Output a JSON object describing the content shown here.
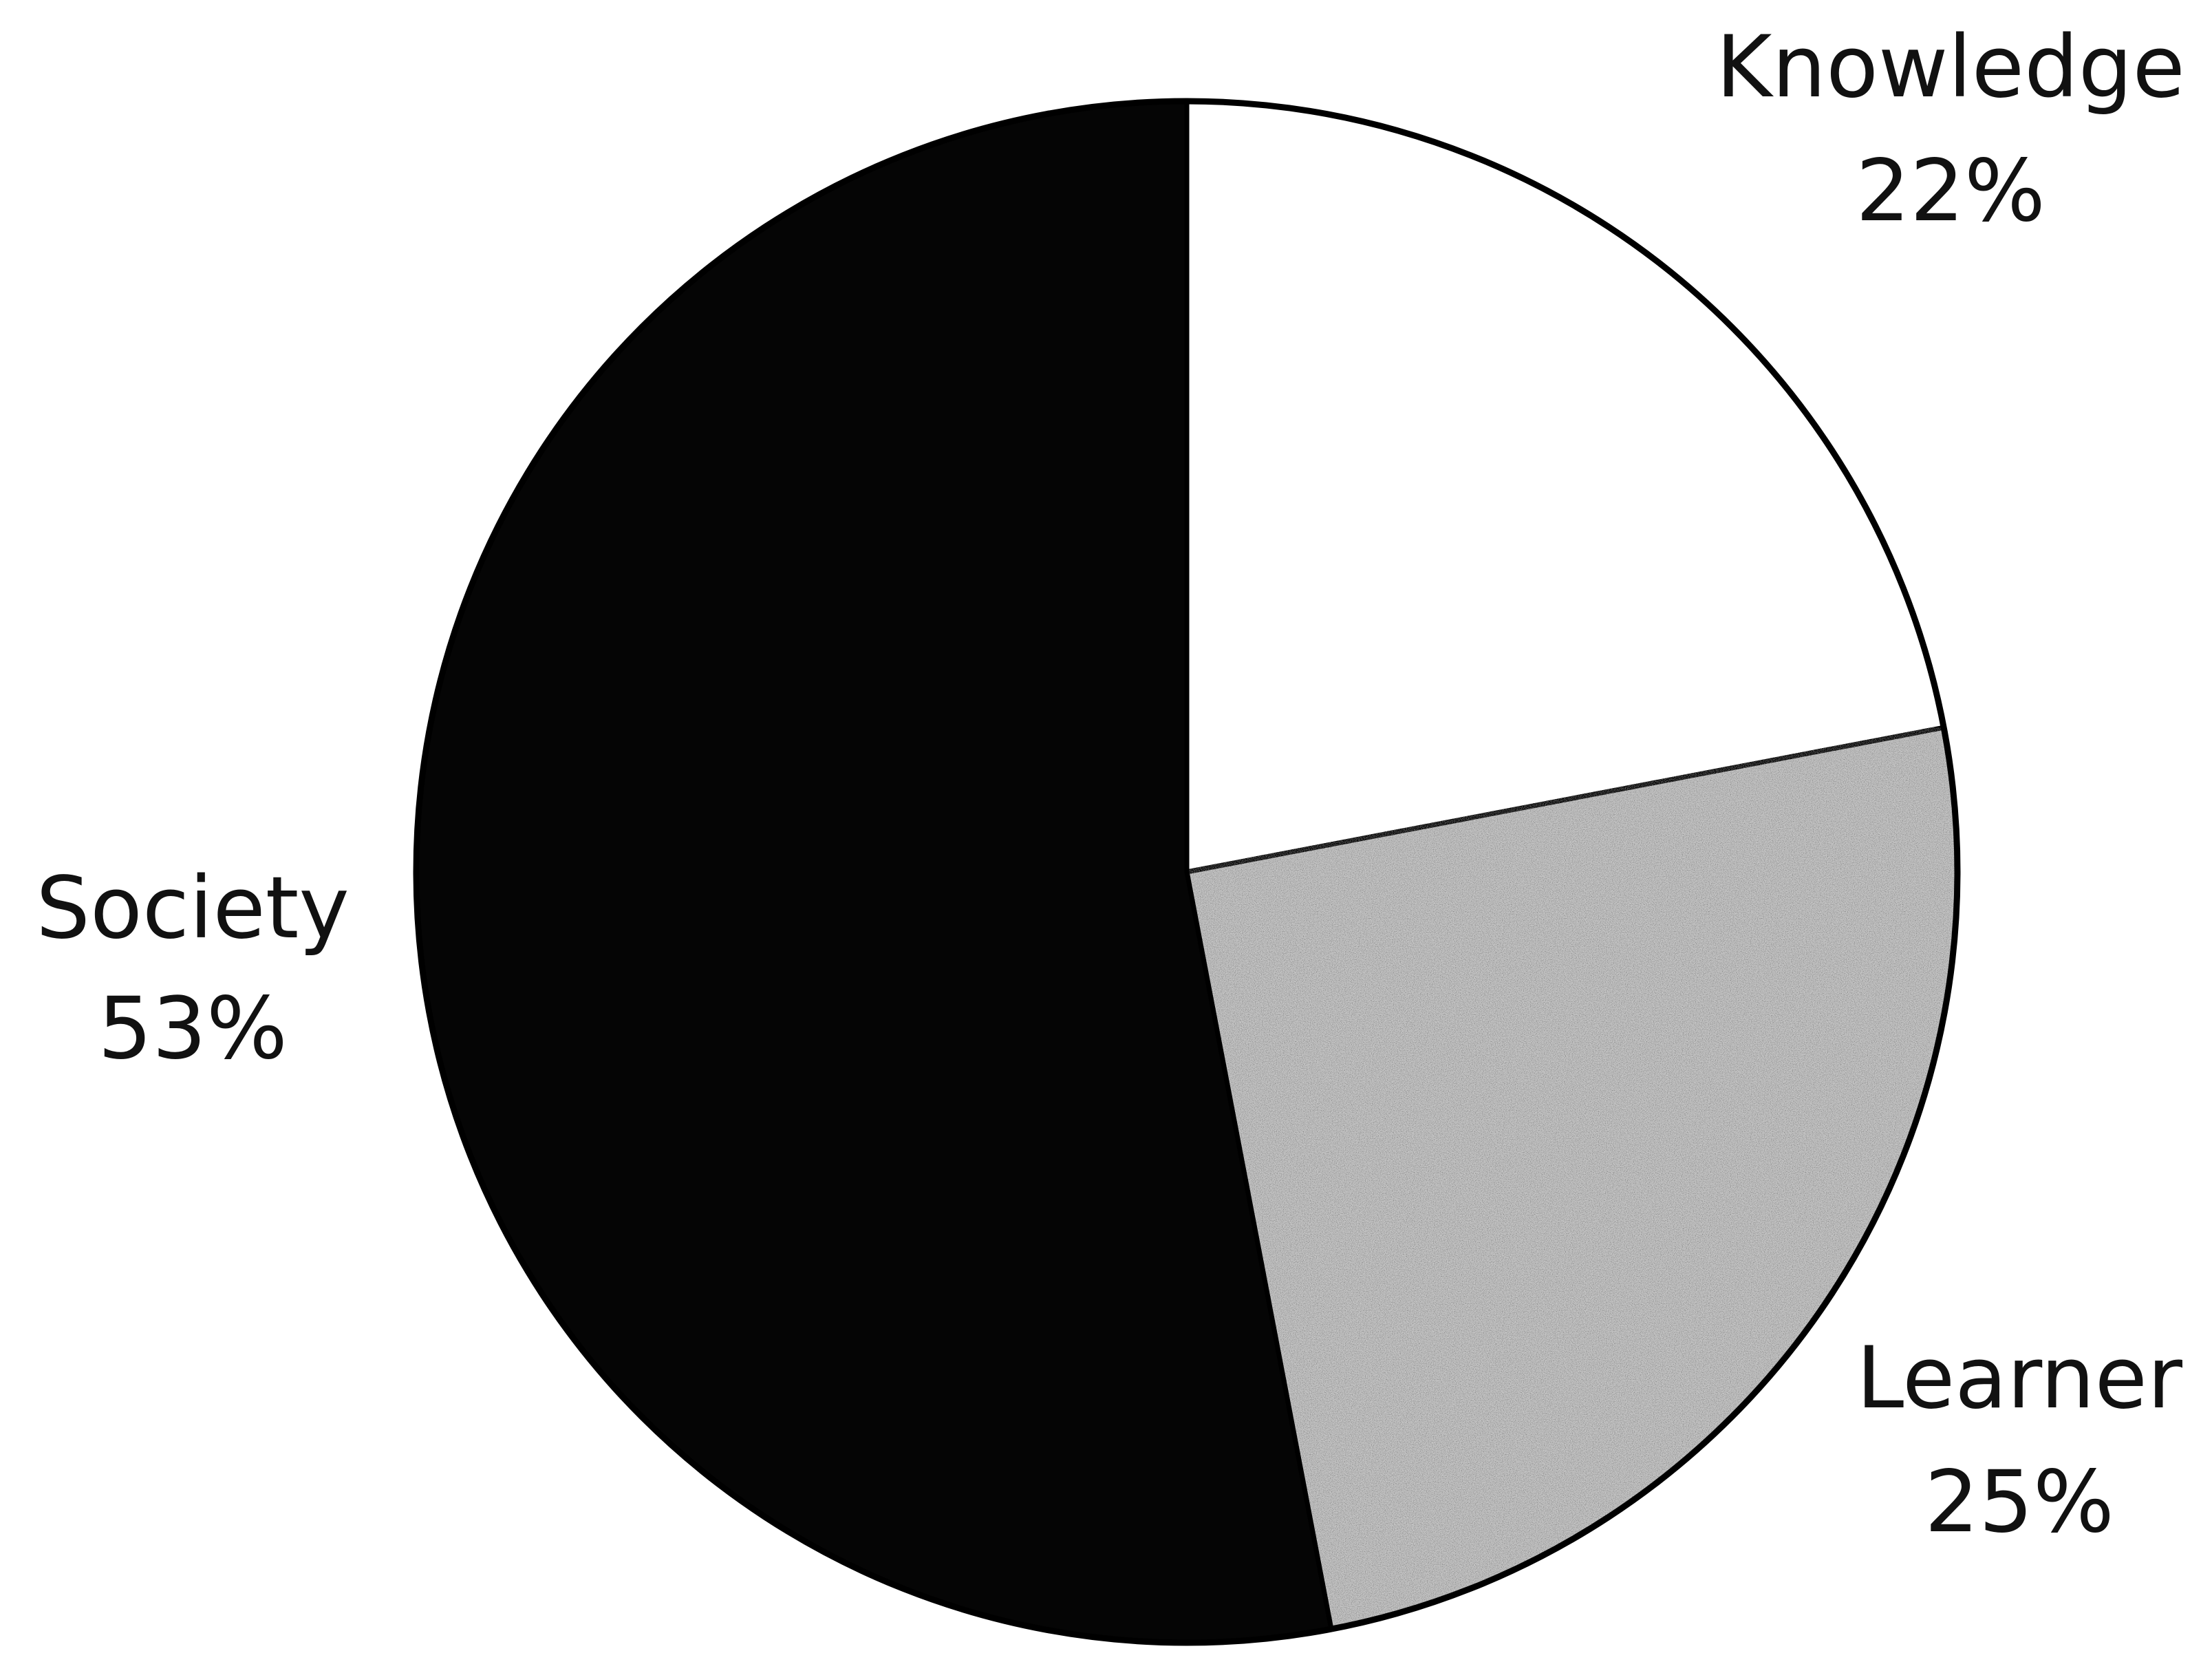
{
  "chart_data": {
    "type": "pie",
    "title": "",
    "start_angle_deg": 0,
    "direction": "clockwise",
    "slices": [
      {
        "label": "Knowledge",
        "value": 22,
        "value_label": "22%",
        "color": "#ffffff",
        "fill": "solid"
      },
      {
        "label": "Learner",
        "value": 25,
        "value_label": "25%",
        "color": "#c4c4c4",
        "fill": "speckled"
      },
      {
        "label": "Society",
        "value": 53,
        "value_label": "53%",
        "color": "#050505",
        "fill": "solid"
      }
    ],
    "legend": "none",
    "labels_outside": true
  }
}
